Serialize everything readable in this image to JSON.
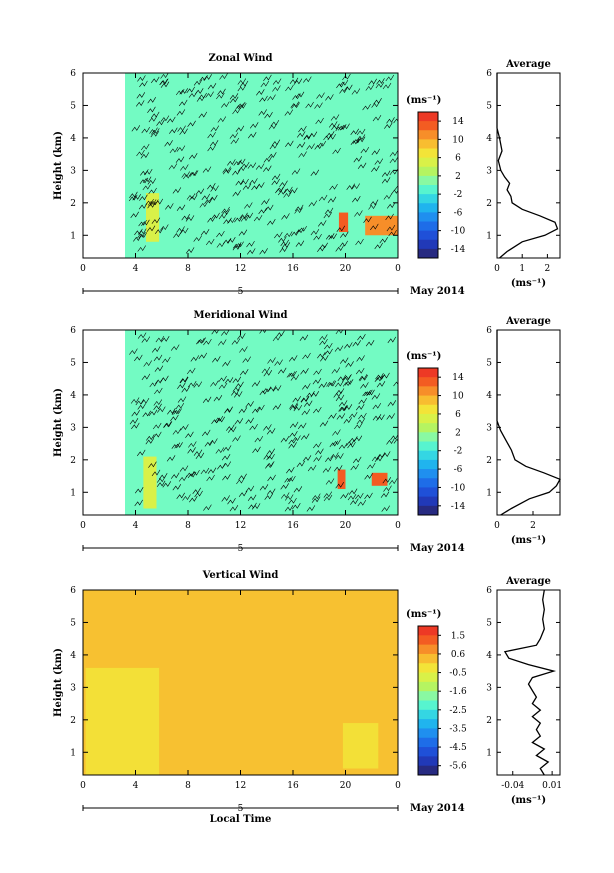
{
  "chart_data": [
    {
      "type": "heatmap",
      "title": "Zonal Wind",
      "ylabel": "Height (km)",
      "x_ticks": [
        "0",
        "4",
        "8",
        "12",
        "16",
        "20",
        "0"
      ],
      "xlim": [
        0,
        24
      ],
      "y_ticks": [
        "1",
        "2",
        "3",
        "4",
        "5",
        "6"
      ],
      "ylim": [
        0.3,
        6.0
      ],
      "date_label": "5",
      "month_label": "May 2014",
      "colorbar": {
        "unit": "(ms⁻¹)",
        "ticks": [
          "14",
          "10",
          "6",
          "2",
          "-2",
          "-6",
          "-10",
          "-14"
        ],
        "range": [
          -16,
          16
        ]
      },
      "dominant_value": 0,
      "features": [
        {
          "x": [
            3.2,
            24
          ],
          "y": [
            0.3,
            6.0
          ],
          "value": 0,
          "note": "main region"
        },
        {
          "x": [
            4.8,
            5.8
          ],
          "y": [
            0.8,
            2.3
          ],
          "value": 5
        },
        {
          "x": [
            19.5,
            20.2
          ],
          "y": [
            1.1,
            1.7
          ],
          "value": 13
        },
        {
          "x": [
            21.5,
            24
          ],
          "y": [
            1.0,
            1.6
          ],
          "value": 11
        }
      ],
      "profile": {
        "title": "Average",
        "xlabel": "(ms⁻¹)",
        "x_ticks": [
          "0",
          "1",
          "2"
        ],
        "xlim": [
          0,
          2.5
        ],
        "height": [
          0.3,
          0.5,
          0.8,
          1.0,
          1.2,
          1.4,
          1.6,
          1.8,
          2.0,
          2.2,
          2.4,
          2.6,
          2.8,
          3.0,
          3.3,
          3.6,
          4.0,
          4.3,
          6.0
        ],
        "value": [
          0.1,
          0.4,
          1.0,
          1.9,
          2.4,
          2.3,
          1.7,
          1.0,
          0.6,
          0.55,
          0.4,
          0.5,
          0.3,
          0.15,
          0.05,
          0.2,
          0.1,
          0.0,
          0.0
        ]
      }
    },
    {
      "type": "heatmap",
      "title": "Meridional Wind",
      "ylabel": "Height (km)",
      "x_ticks": [
        "0",
        "4",
        "8",
        "12",
        "16",
        "20",
        "0"
      ],
      "xlim": [
        0,
        24
      ],
      "y_ticks": [
        "1",
        "2",
        "3",
        "4",
        "5",
        "6"
      ],
      "ylim": [
        0.3,
        6.0
      ],
      "date_label": "5",
      "month_label": "May 2014",
      "colorbar": {
        "unit": "(ms⁻¹)",
        "ticks": [
          "14",
          "10",
          "6",
          "2",
          "-2",
          "-6",
          "-10",
          "-14"
        ],
        "range": [
          -16,
          16
        ]
      },
      "dominant_value": 0,
      "features": [
        {
          "x": [
            3.2,
            24
          ],
          "y": [
            0.3,
            6.0
          ],
          "value": 0,
          "note": "main region"
        },
        {
          "x": [
            4.6,
            5.6
          ],
          "y": [
            0.5,
            2.1
          ],
          "value": 5
        },
        {
          "x": [
            19.4,
            20.0
          ],
          "y": [
            1.1,
            1.7
          ],
          "value": 13
        },
        {
          "x": [
            22.0,
            23.2
          ],
          "y": [
            1.2,
            1.6
          ],
          "value": 13
        }
      ],
      "profile": {
        "title": "Average",
        "xlabel": "(ms⁻¹)",
        "x_ticks": [
          "0",
          "2"
        ],
        "xlim": [
          0,
          3.5
        ],
        "height": [
          0.3,
          0.5,
          0.8,
          1.0,
          1.2,
          1.4,
          1.6,
          1.8,
          2.0,
          2.3,
          2.6,
          2.9,
          3.2,
          4.0,
          6.0
        ],
        "value": [
          0.2,
          0.8,
          1.8,
          2.9,
          3.3,
          3.5,
          2.6,
          1.6,
          1.0,
          0.8,
          0.5,
          0.2,
          0.0,
          0.0,
          0.0
        ]
      }
    },
    {
      "type": "heatmap",
      "title": "Vertical Wind",
      "ylabel": "Height (km)",
      "xlabel": "Local Time",
      "x_ticks": [
        "0",
        "4",
        "8",
        "12",
        "16",
        "20",
        "0"
      ],
      "xlim": [
        0,
        24
      ],
      "y_ticks": [
        "1",
        "2",
        "3",
        "4",
        "5",
        "6"
      ],
      "ylim": [
        0.3,
        6.0
      ],
      "date_label": "5",
      "month_label": "May 2014",
      "colorbar": {
        "unit": "(ms⁻¹)",
        "ticks": [
          "1.5",
          "0.6",
          "-0.5",
          "-1.6",
          "-2.5",
          "-3.5",
          "-4.5",
          "-5.6"
        ],
        "range": [
          -6,
          2
        ]
      },
      "dominant_value": 0.2,
      "features": [
        {
          "x": [
            0,
            24
          ],
          "y": [
            0.3,
            6.0
          ],
          "value": 0.2,
          "note": "main region"
        },
        {
          "x": [
            0.2,
            5.8
          ],
          "y": [
            0.3,
            3.6
          ],
          "value": -0.2
        },
        {
          "x": [
            19.8,
            22.5
          ],
          "y": [
            0.5,
            1.9
          ],
          "value": -0.2
        }
      ],
      "profile": {
        "title": "Average",
        "xlabel": "(ms⁻¹)",
        "x_ticks": [
          "-0.04",
          "0.01"
        ],
        "xlim": [
          -0.06,
          0.02
        ],
        "height": [
          0.3,
          0.5,
          0.7,
          0.9,
          1.1,
          1.3,
          1.5,
          1.7,
          1.9,
          2.1,
          2.3,
          2.5,
          2.7,
          2.9,
          3.1,
          3.3,
          3.5,
          3.7,
          3.9,
          4.1,
          4.3,
          4.5,
          4.8,
          5.1,
          5.4,
          5.7,
          6.0
        ],
        "value": [
          0.0,
          -0.005,
          0.005,
          -0.01,
          0.0,
          -0.015,
          -0.005,
          -0.01,
          -0.005,
          -0.015,
          -0.005,
          -0.015,
          -0.01,
          -0.015,
          -0.02,
          -0.015,
          0.012,
          -0.02,
          -0.045,
          -0.05,
          -0.01,
          -0.005,
          0.0,
          -0.002,
          0.0,
          -0.002,
          0.0
        ]
      }
    }
  ]
}
